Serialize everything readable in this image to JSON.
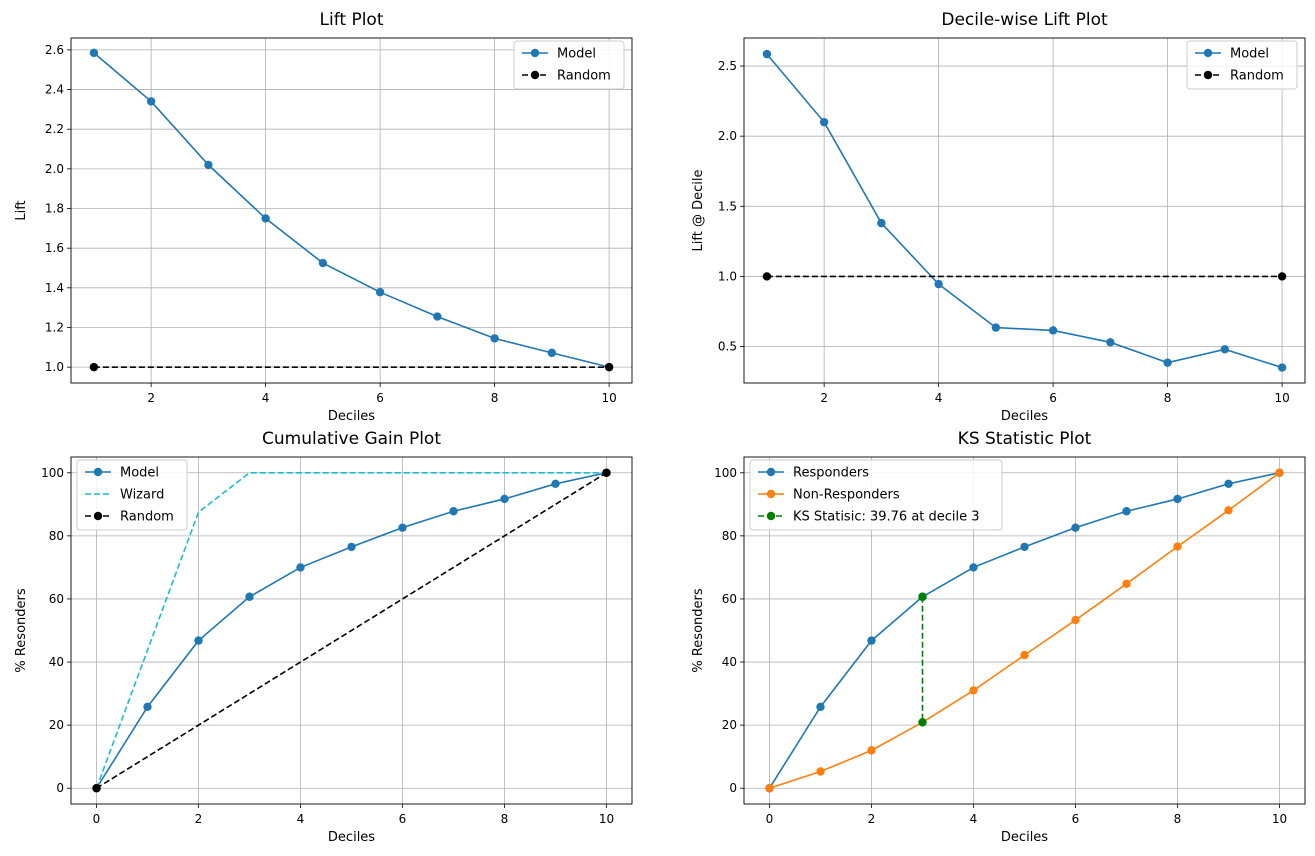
{
  "chart_data": [
    {
      "type": "line",
      "title": "Lift Plot",
      "xlabel": "Deciles",
      "ylabel": "Lift",
      "xlim": [
        0.6,
        10.4
      ],
      "ylim": [
        0.92,
        2.66
      ],
      "xticks": [
        2,
        4,
        6,
        8,
        10
      ],
      "xtick_labels": [
        "2",
        "4",
        "6",
        "8",
        "10"
      ],
      "yticks": [
        1.0,
        1.2,
        1.4,
        1.6,
        1.8,
        2.0,
        2.2,
        2.4,
        2.6
      ],
      "ytick_labels": [
        "1.0",
        "1.2",
        "1.4",
        "1.6",
        "1.8",
        "2.0",
        "2.2",
        "2.4",
        "2.6"
      ],
      "grid": true,
      "legend": "top-right",
      "series": [
        {
          "name": "Model",
          "color": "#1f77b4",
          "style": "solid",
          "x": [
            1,
            2,
            3,
            4,
            5,
            6,
            7,
            8,
            9,
            10
          ],
          "y": [
            2.585,
            2.34,
            2.02,
            1.75,
            1.525,
            1.378,
            1.255,
            1.145,
            1.072,
            1.0
          ]
        },
        {
          "name": "Random",
          "color": "#000000",
          "style": "dashed",
          "x": [
            1,
            10
          ],
          "y": [
            1.0,
            1.0
          ]
        }
      ]
    },
    {
      "type": "line",
      "title": "Decile-wise Lift Plot",
      "xlabel": "Deciles",
      "ylabel": "Lift @ Decile",
      "xlim": [
        0.6,
        10.4
      ],
      "ylim": [
        0.24,
        2.7
      ],
      "xticks": [
        2,
        4,
        6,
        8,
        10
      ],
      "xtick_labels": [
        "2",
        "4",
        "6",
        "8",
        "10"
      ],
      "yticks": [
        0.5,
        1.0,
        1.5,
        2.0,
        2.5
      ],
      "ytick_labels": [
        "0.5",
        "1.0",
        "1.5",
        "2.0",
        "2.5"
      ],
      "grid": true,
      "legend": "top-right",
      "series": [
        {
          "name": "Model",
          "color": "#1f77b4",
          "style": "solid",
          "x": [
            1,
            2,
            3,
            4,
            5,
            6,
            7,
            8,
            9,
            10
          ],
          "y": [
            2.585,
            2.1,
            1.38,
            0.945,
            0.635,
            0.615,
            0.53,
            0.385,
            0.48,
            0.35
          ]
        },
        {
          "name": "Random",
          "color": "#000000",
          "style": "dashed",
          "x": [
            1,
            10
          ],
          "y": [
            1.0,
            1.0
          ]
        }
      ]
    },
    {
      "type": "line",
      "title": "Cumulative Gain Plot",
      "xlabel": "Deciles",
      "ylabel": "% Resonders",
      "xlim": [
        -0.5,
        10.5
      ],
      "ylim": [
        -5,
        105
      ],
      "xticks": [
        0,
        2,
        4,
        6,
        8,
        10
      ],
      "xtick_labels": [
        "0",
        "2",
        "4",
        "6",
        "8",
        "10"
      ],
      "yticks": [
        0,
        20,
        40,
        60,
        80,
        100
      ],
      "ytick_labels": [
        "0",
        "20",
        "40",
        "60",
        "80",
        "100"
      ],
      "grid": true,
      "legend": "top-left",
      "series": [
        {
          "name": "Model",
          "color": "#1f77b4",
          "style": "solid",
          "x": [
            0,
            1,
            2,
            3,
            4,
            5,
            6,
            7,
            8,
            9,
            10
          ],
          "y": [
            0,
            25.8,
            46.8,
            60.7,
            70.0,
            76.5,
            82.6,
            87.8,
            91.7,
            96.5,
            100
          ]
        },
        {
          "name": "Wizard",
          "color": "#17becf",
          "style": "dashed",
          "x": [
            0,
            2,
            3,
            10
          ],
          "y": [
            0,
            87.5,
            100,
            100
          ]
        },
        {
          "name": "Random",
          "color": "#000000",
          "style": "dashed",
          "x": [
            0,
            10
          ],
          "y": [
            0,
            100
          ]
        }
      ]
    },
    {
      "type": "line",
      "title": "KS Statistic Plot",
      "xlabel": "Deciles",
      "ylabel": "% Resonders",
      "xlim": [
        -0.5,
        10.5
      ],
      "ylim": [
        -5,
        105
      ],
      "xticks": [
        0,
        2,
        4,
        6,
        8,
        10
      ],
      "xtick_labels": [
        "0",
        "2",
        "4",
        "6",
        "8",
        "10"
      ],
      "yticks": [
        0,
        20,
        40,
        60,
        80,
        100
      ],
      "ytick_labels": [
        "0",
        "20",
        "40",
        "60",
        "80",
        "100"
      ],
      "grid": true,
      "legend": "top-left",
      "series": [
        {
          "name": "Responders",
          "color": "#1f77b4",
          "style": "solid",
          "x": [
            0,
            1,
            2,
            3,
            4,
            5,
            6,
            7,
            8,
            9,
            10
          ],
          "y": [
            0,
            25.8,
            46.8,
            60.7,
            70.0,
            76.5,
            82.6,
            87.8,
            91.7,
            96.5,
            100
          ]
        },
        {
          "name": "Non-Responders",
          "color": "#ff7f0e",
          "style": "solid",
          "x": [
            0,
            1,
            2,
            3,
            4,
            5,
            6,
            7,
            8,
            9,
            10
          ],
          "y": [
            0,
            5.3,
            12.0,
            20.9,
            31.0,
            42.2,
            53.3,
            64.8,
            76.6,
            88.1,
            100
          ]
        },
        {
          "name": "KS Statisic: 39.76 at decile 3",
          "color": "#008000",
          "style": "dashed",
          "x": [
            3,
            3
          ],
          "y": [
            60.7,
            20.9
          ]
        }
      ]
    }
  ]
}
